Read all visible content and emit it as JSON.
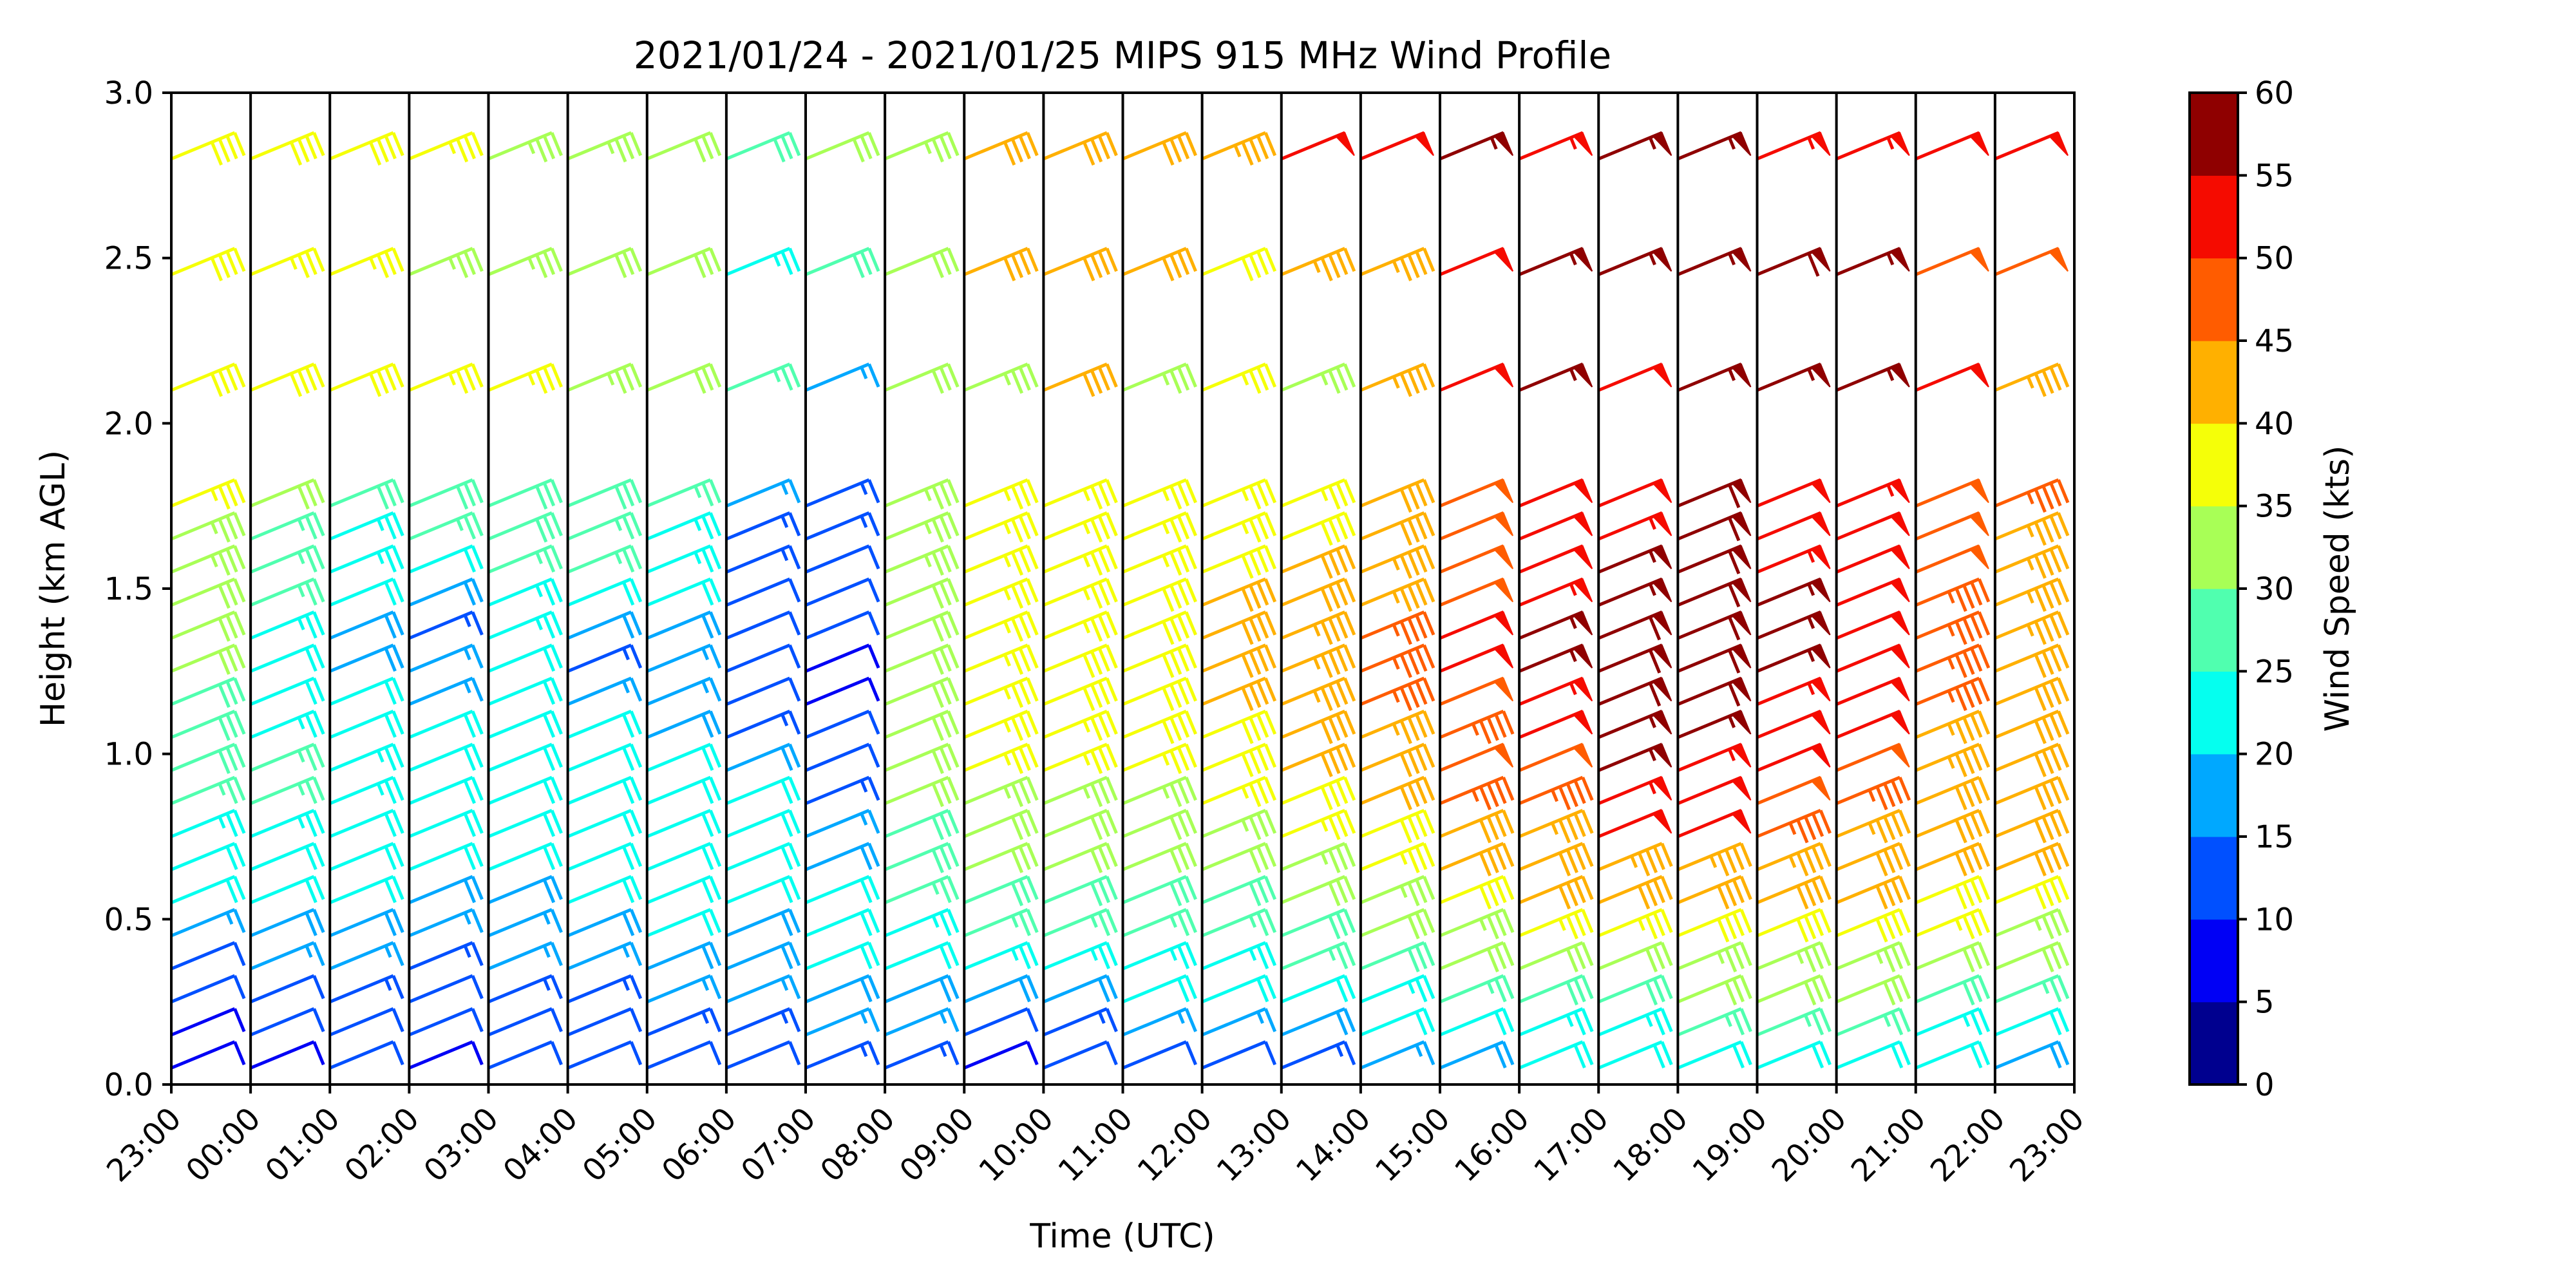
{
  "chart_data": {
    "type": "wind-barb",
    "title": "2021/01/24 - 2021/01/25 MIPS 915 MHz Wind Profile",
    "xlabel": "Time (UTC)",
    "ylabel": "Height (km AGL)",
    "ylim": [
      0,
      3.0
    ],
    "yticks": [
      "0.0",
      "0.5",
      "1.0",
      "1.5",
      "2.0",
      "2.5",
      "3.0"
    ],
    "xticks": [
      "23:00",
      "00:00",
      "01:00",
      "02:00",
      "03:00",
      "04:00",
      "05:00",
      "06:00",
      "07:00",
      "08:00",
      "09:00",
      "10:00",
      "11:00",
      "12:00",
      "13:00",
      "14:00",
      "15:00",
      "16:00",
      "17:00",
      "18:00",
      "19:00",
      "20:00",
      "21:00",
      "22:00",
      "23:00"
    ],
    "hour_separators": true,
    "heights_km": [
      0.05,
      0.15,
      0.25,
      0.35,
      0.45,
      0.55,
      0.65,
      0.75,
      0.85,
      0.95,
      1.05,
      1.15,
      1.25,
      1.35,
      1.45,
      1.55,
      1.65,
      1.75,
      2.1,
      2.45,
      2.8
    ],
    "speed_profiles_kts": [
      [
        8,
        8,
        10,
        12,
        16,
        20,
        22,
        24,
        26,
        28,
        28,
        28,
        30,
        30,
        32,
        33,
        34,
        35,
        38,
        38,
        38
      ],
      [
        8,
        10,
        12,
        15,
        18,
        20,
        22,
        24,
        25,
        26,
        24,
        22,
        22,
        24,
        26,
        26,
        25,
        30,
        38,
        36,
        38
      ],
      [
        10,
        12,
        14,
        16,
        18,
        20,
        20,
        22,
        24,
        24,
        22,
        20,
        18,
        18,
        22,
        24,
        24,
        28,
        38,
        35,
        38
      ],
      [
        8,
        10,
        12,
        14,
        16,
        18,
        20,
        22,
        22,
        22,
        20,
        16,
        15,
        14,
        18,
        22,
        25,
        28,
        37,
        34,
        36
      ],
      [
        10,
        12,
        14,
        15,
        16,
        18,
        20,
        20,
        22,
        22,
        22,
        20,
        20,
        24,
        24,
        26,
        28,
        28,
        36,
        33,
        34
      ],
      [
        10,
        12,
        14,
        16,
        18,
        20,
        22,
        22,
        22,
        22,
        20,
        16,
        14,
        18,
        22,
        26,
        26,
        28,
        34,
        32,
        34
      ],
      [
        12,
        14,
        16,
        18,
        20,
        20,
        22,
        22,
        22,
        22,
        18,
        16,
        15,
        18,
        22,
        24,
        24,
        26,
        32,
        30,
        32
      ],
      [
        12,
        14,
        16,
        18,
        18,
        20,
        20,
        20,
        20,
        18,
        14,
        12,
        10,
        10,
        12,
        14,
        14,
        16,
        26,
        24,
        28
      ],
      [
        14,
        16,
        18,
        20,
        20,
        20,
        18,
        16,
        14,
        12,
        10,
        8,
        8,
        10,
        12,
        12,
        14,
        14,
        16,
        28,
        30
      ],
      [
        14,
        16,
        18,
        22,
        24,
        26,
        28,
        28,
        30,
        30,
        30,
        30,
        32,
        32,
        32,
        33,
        34,
        34,
        32,
        31,
        34
      ],
      [
        8,
        12,
        18,
        24,
        26,
        28,
        30,
        30,
        34,
        36,
        36,
        37,
        37,
        37,
        36,
        35,
        35,
        35,
        34,
        42,
        42
      ],
      [
        10,
        14,
        18,
        24,
        26,
        28,
        30,
        32,
        34,
        36,
        36,
        38,
        38,
        37,
        37,
        36,
        35,
        35,
        40,
        42,
        42
      ],
      [
        12,
        16,
        20,
        24,
        26,
        28,
        30,
        32,
        34,
        36,
        38,
        38,
        39,
        39,
        38,
        37,
        36,
        35,
        34,
        42,
        42
      ],
      [
        12,
        16,
        20,
        24,
        26,
        28,
        30,
        34,
        36,
        38,
        38,
        40,
        42,
        42,
        40,
        38,
        36,
        36,
        35,
        38,
        44
      ],
      [
        14,
        18,
        22,
        26,
        28,
        32,
        34,
        36,
        38,
        40,
        42,
        44,
        44,
        44,
        42,
        40,
        38,
        36,
        34,
        44,
        52
      ],
      [
        16,
        20,
        24,
        28,
        30,
        34,
        36,
        38,
        40,
        42,
        44,
        46,
        46,
        46,
        44,
        44,
        42,
        40,
        44,
        44,
        52
      ],
      [
        18,
        20,
        26,
        30,
        34,
        38,
        40,
        42,
        46,
        48,
        46,
        48,
        50,
        52,
        48,
        48,
        48,
        48,
        50,
        50,
        56
      ],
      [
        20,
        24,
        28,
        32,
        36,
        40,
        42,
        44,
        46,
        48,
        52,
        54,
        56,
        56,
        54,
        52,
        52,
        52,
        56,
        56,
        54
      ],
      [
        22,
        24,
        28,
        32,
        36,
        40,
        44,
        50,
        54,
        56,
        56,
        58,
        58,
        58,
        56,
        56,
        54,
        52,
        52,
        56,
        56
      ],
      [
        22,
        26,
        30,
        34,
        38,
        42,
        44,
        50,
        52,
        54,
        55,
        58,
        58,
        58,
        58,
        58,
        58,
        58,
        56,
        56,
        56
      ],
      [
        22,
        26,
        30,
        34,
        38,
        40,
        44,
        46,
        48,
        50,
        52,
        54,
        56,
        56,
        56,
        54,
        52,
        52,
        56,
        58,
        54
      ],
      [
        22,
        26,
        30,
        34,
        38,
        40,
        42,
        44,
        46,
        48,
        50,
        52,
        52,
        52,
        52,
        52,
        52,
        54,
        56,
        56,
        54
      ],
      [
        20,
        24,
        28,
        32,
        36,
        38,
        40,
        42,
        42,
        44,
        44,
        46,
        46,
        46,
        46,
        48,
        48,
        48,
        52,
        48,
        52
      ],
      [
        18,
        22,
        26,
        30,
        34,
        38,
        40,
        40,
        40,
        42,
        42,
        42,
        42,
        44,
        44,
        44,
        44,
        46,
        44,
        48,
        52
      ]
    ],
    "colorbar": {
      "label": "Wind Speed (kts)",
      "ticks": [
        "0",
        "5",
        "10",
        "15",
        "20",
        "25",
        "30",
        "35",
        "40",
        "45",
        "50",
        "55",
        "60"
      ],
      "range": [
        0,
        60
      ],
      "colors": [
        "#00008f",
        "#0000f5",
        "#0050ff",
        "#00a8ff",
        "#05ffef",
        "#50ffaf",
        "#a8ff56",
        "#f5ff08",
        "#ffb000",
        "#ff5c00",
        "#f50b00",
        "#8f0000"
      ]
    }
  }
}
